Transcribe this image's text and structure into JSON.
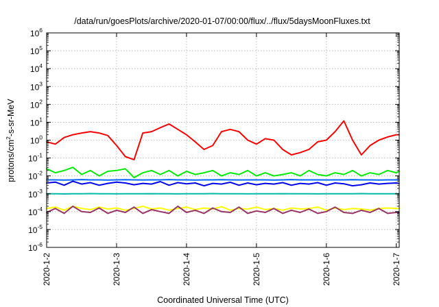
{
  "chart_data": {
    "type": "line",
    "title": "/data/run/goesPlots/archive/2020-01-07/00:00/flux/../flux/5daysMoonFluxes.txt",
    "xlabel": "Coordinated Universal Time (UTC)",
    "ylabel": {
      "base": "protons/cm",
      "sup": "2",
      "rest": "-s-sr-MeV"
    },
    "yscale": "log",
    "ylim": [
      1e-06,
      1000000.0
    ],
    "xlim": [
      "2020-01-02 00:00",
      "2020-01-07 01:00"
    ],
    "grid": true,
    "legend": "none",
    "x_ticks": [
      "2020-1-2",
      "2020-1-3",
      "2020-1-4",
      "2020-1-5",
      "2020-1-6",
      "2020-1-7"
    ],
    "y_ticks": [
      {
        "base": "10",
        "exp": "-6"
      },
      {
        "base": "10",
        "exp": "-5"
      },
      {
        "base": "10",
        "exp": "-4"
      },
      {
        "base": "10",
        "exp": "-3"
      },
      {
        "base": "10",
        "exp": "-2"
      },
      {
        "base": "10",
        "exp": "-1"
      },
      {
        "base": "10",
        "exp": "0"
      },
      {
        "base": "10",
        "exp": "1"
      },
      {
        "base": "10",
        "exp": "2"
      },
      {
        "base": "10",
        "exp": "3"
      },
      {
        "base": "10",
        "exp": "4"
      },
      {
        "base": "10",
        "exp": "5"
      },
      {
        "base": "10",
        "exp": "6"
      }
    ],
    "x_days": [
      0,
      0.125,
      0.25,
      0.375,
      0.5,
      0.625,
      0.75,
      0.875,
      1,
      1.125,
      1.25,
      1.375,
      1.5,
      1.625,
      1.75,
      1.875,
      2,
      2.125,
      2.25,
      2.375,
      2.5,
      2.625,
      2.75,
      2.875,
      3,
      3.125,
      3.25,
      3.375,
      3.5,
      3.625,
      3.75,
      3.875,
      4,
      4.125,
      4.25,
      4.375,
      4.5,
      4.625,
      4.75,
      4.875,
      5,
      5.04
    ],
    "series": [
      {
        "color": "#ff0000",
        "values": [
          0.8,
          0.6,
          1.4,
          2.0,
          2.5,
          3.0,
          2.5,
          1.8,
          0.5,
          0.12,
          0.08,
          2.5,
          3.0,
          5.0,
          8.0,
          4.0,
          2.0,
          0.8,
          0.3,
          0.5,
          3.0,
          4.0,
          3.0,
          1.0,
          0.6,
          1.2,
          1.0,
          0.3,
          0.15,
          0.2,
          0.3,
          0.8,
          1.0,
          3.0,
          12.0,
          1.0,
          0.15,
          0.5,
          1.0,
          1.5,
          2.0,
          2.0
        ]
      },
      {
        "color": "#00ee00",
        "values": [
          0.025,
          0.015,
          0.02,
          0.03,
          0.012,
          0.02,
          0.01,
          0.018,
          0.02,
          0.025,
          0.008,
          0.015,
          0.02,
          0.012,
          0.02,
          0.01,
          0.018,
          0.012,
          0.015,
          0.02,
          0.01,
          0.015,
          0.012,
          0.02,
          0.01,
          0.015,
          0.01,
          0.012,
          0.015,
          0.01,
          0.02,
          0.012,
          0.01,
          0.015,
          0.012,
          0.02,
          0.01,
          0.015,
          0.012,
          0.02,
          0.015,
          0.018
        ]
      },
      {
        "color": "#0066ff",
        "values": [
          0.006,
          0.006,
          0.0058,
          0.006,
          0.0062,
          0.006,
          0.006,
          0.0058,
          0.006,
          0.0061,
          0.006,
          0.0059,
          0.006,
          0.006,
          0.0062,
          0.006,
          0.006,
          0.0058,
          0.006,
          0.006,
          0.0061,
          0.006,
          0.0059,
          0.006,
          0.006,
          0.006,
          0.0058,
          0.006,
          0.0062,
          0.006,
          0.006,
          0.006,
          0.0059,
          0.006,
          0.006,
          0.0061,
          0.006,
          0.006,
          0.0058,
          0.006,
          0.006,
          0.006
        ]
      },
      {
        "color": "#0000ee",
        "values": [
          0.004,
          0.0045,
          0.003,
          0.005,
          0.0035,
          0.0042,
          0.003,
          0.0038,
          0.0045,
          0.004,
          0.0032,
          0.0038,
          0.0035,
          0.0048,
          0.003,
          0.0042,
          0.0036,
          0.004,
          0.0028,
          0.0038,
          0.0035,
          0.0044,
          0.003,
          0.004,
          0.0032,
          0.0038,
          0.0035,
          0.0042,
          0.003,
          0.0038,
          0.0035,
          0.0042,
          0.003,
          0.004,
          0.0036,
          0.0028,
          0.0032,
          0.004,
          0.0035,
          0.0038,
          0.004,
          0.0038
        ]
      },
      {
        "color": "#00bbaa",
        "values": [
          0.001,
          0.001,
          0.00098,
          0.001,
          0.001,
          0.00102,
          0.001,
          0.001,
          0.00099,
          0.001,
          0.001,
          0.001,
          0.00101,
          0.001,
          0.001,
          0.00099,
          0.001,
          0.001,
          0.001,
          0.00102,
          0.001,
          0.001,
          0.001,
          0.00099,
          0.001,
          0.001,
          0.001,
          0.00101,
          0.001,
          0.001,
          0.001,
          0.00099,
          0.001,
          0.001,
          0.001,
          0.001,
          0.00102,
          0.001,
          0.001,
          0.001,
          0.001,
          0.001
        ]
      },
      {
        "color": "#ffff00",
        "values": [
          0.00015,
          0.00018,
          0.00012,
          0.0002,
          0.00015,
          0.00013,
          0.00018,
          0.00014,
          0.00016,
          0.00012,
          0.00015,
          0.0002,
          0.00014,
          0.00016,
          0.00012,
          0.00015,
          0.00018,
          0.00013,
          0.00016,
          0.00014,
          0.00019,
          0.00012,
          0.00015,
          0.00014,
          0.00018,
          0.00013,
          0.00015,
          0.00012,
          0.00016,
          0.00014,
          0.00015,
          0.00018,
          0.00012,
          0.00016,
          0.00013,
          0.00015,
          0.00014,
          0.00012,
          0.00015,
          0.00016,
          0.00015,
          0.00015
        ]
      },
      {
        "color": "#993366",
        "values": [
          9e-05,
          0.00015,
          8e-05,
          0.0002,
          0.0001,
          9e-05,
          0.00016,
          8e-05,
          0.00012,
          9e-05,
          0.00018,
          8e-05,
          0.00013,
          0.0001,
          8e-05,
          0.0002,
          9e-05,
          0.00012,
          8e-05,
          0.00016,
          0.0001,
          9e-05,
          0.00018,
          8e-05,
          0.00011,
          9e-05,
          0.00015,
          8e-05,
          0.00012,
          9e-05,
          0.00014,
          8e-05,
          0.0001,
          0.00018,
          9e-05,
          8e-05,
          0.00012,
          9e-05,
          0.00015,
          8e-05,
          9e-05,
          9e-05
        ]
      }
    ]
  }
}
